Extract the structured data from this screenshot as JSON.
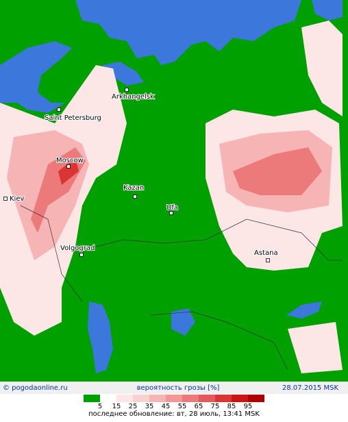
{
  "map": {
    "cities": [
      {
        "label": "Arkhangelsk"
      },
      {
        "label": "Saint Petersburg"
      },
      {
        "label": "Moscow"
      },
      {
        "label": "Kiev"
      },
      {
        "label": "Kazan"
      },
      {
        "label": "Ufa"
      },
      {
        "label": "Volgograd"
      },
      {
        "label": "Astana"
      }
    ]
  },
  "footer": {
    "site": "© pogodaonline.ru",
    "title": "вероятность грозы [%]",
    "date": "28.07.2015 MSK",
    "updated": "последнее обновление: вт, 28 июль, 13:41 MSK"
  },
  "legend": {
    "values": [
      5,
      15,
      25,
      35,
      45,
      55,
      65,
      75,
      85,
      95
    ],
    "colors": [
      "#00a000",
      "#ffffff",
      "#fde6e6",
      "#fbd0d0",
      "#f7b4b4",
      "#f29696",
      "#ec7a7a",
      "#e45a5a",
      "#da3434",
      "#cc1414",
      "#b00000"
    ]
  }
}
